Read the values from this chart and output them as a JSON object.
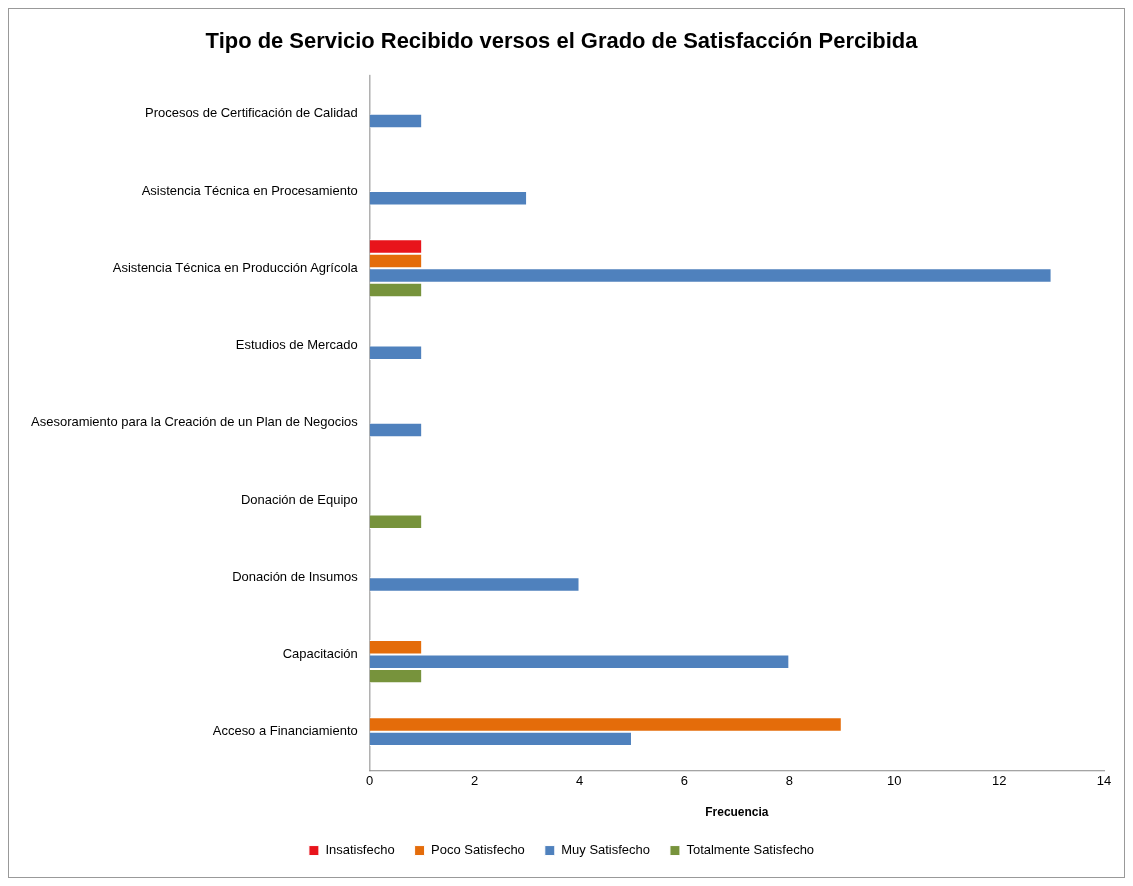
{
  "chart_data": {
    "type": "bar",
    "orientation": "horizontal",
    "title": "Tipo de Servicio Recibido versos el Grado de Satisfacción Percibida",
    "xlabel": "Frecuencia",
    "categories": [
      "Procesos de Certificación de Calidad",
      "Asistencia Técnica en Procesamiento",
      "Asistencia Técnica en Producción Agrícola",
      "Estudios de Mercado",
      "Asesoramiento para la Creación de un Plan de Negocios",
      "Donación de Equipo",
      "Donación de Insumos",
      "Capacitación",
      "Acceso a Financiamiento"
    ],
    "series": [
      {
        "name": "Insatisfecho",
        "color": "#e8141b",
        "values": [
          0,
          0,
          1,
          0,
          0,
          0,
          0,
          0,
          0
        ]
      },
      {
        "name": "Poco Satisfecho",
        "color": "#e46c0a",
        "values": [
          0,
          0,
          1,
          0,
          0,
          0,
          0,
          1,
          9
        ]
      },
      {
        "name": "Muy Satisfecho",
        "color": "#4f81bd",
        "values": [
          1,
          3,
          13,
          1,
          1,
          0,
          4,
          8,
          5
        ]
      },
      {
        "name": "Totalmente Satisfecho",
        "color": "#77933c",
        "values": [
          0,
          0,
          1,
          0,
          0,
          1,
          0,
          1,
          0
        ]
      }
    ],
    "xlim": [
      0,
      14
    ],
    "xticks": [
      0,
      2,
      4,
      6,
      8,
      10,
      12,
      14
    ],
    "grid": false,
    "legend": "bottom"
  }
}
